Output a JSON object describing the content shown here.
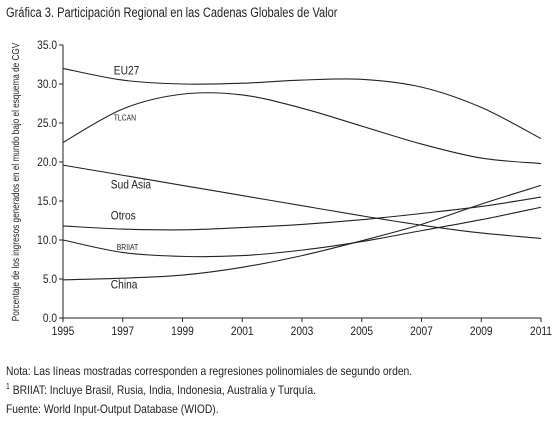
{
  "chart_data": {
    "type": "line",
    "title": "Gráfica 3. Participación Regional en las Cadenas Globales de Valor",
    "ylabel": "Porcentaje de los ingresos generados en el mundo bajo el esquema de CGV",
    "xlabel": "",
    "xlim": [
      1995,
      2011
    ],
    "ylim": [
      0,
      35
    ],
    "xticks": [
      "1995",
      "1997",
      "1999",
      "2001",
      "2003",
      "2005",
      "2007",
      "2009",
      "2011"
    ],
    "yticks": [
      "0.0",
      "5.0",
      "10.0",
      "15.0",
      "20.0",
      "25.0",
      "30.0",
      "35.0"
    ],
    "grid": false,
    "series": [
      {
        "name": "EU27",
        "x": [
          1995,
          1997,
          1999,
          2001,
          2003,
          2005,
          2007,
          2009,
          2011
        ],
        "values": [
          32.0,
          30.5,
          30.0,
          30.1,
          30.5,
          30.6,
          29.6,
          27.0,
          23.0
        ]
      },
      {
        "name": "TLCAN",
        "x": [
          1995,
          1997,
          1999,
          2001,
          2003,
          2005,
          2007,
          2009,
          2011
        ],
        "values": [
          22.5,
          26.8,
          28.7,
          28.6,
          26.9,
          24.6,
          22.3,
          20.5,
          19.8
        ]
      },
      {
        "name": "Sud Asia",
        "x": [
          1995,
          1997,
          1999,
          2001,
          2003,
          2005,
          2007,
          2009,
          2011
        ],
        "values": [
          19.6,
          18.3,
          17.0,
          15.7,
          14.4,
          13.1,
          11.9,
          10.9,
          10.2
        ]
      },
      {
        "name": "Otros",
        "x": [
          1995,
          1997,
          1999,
          2001,
          2003,
          2005,
          2007,
          2009,
          2011
        ],
        "values": [
          11.8,
          11.4,
          11.3,
          11.6,
          12.0,
          12.6,
          13.4,
          14.3,
          15.5
        ]
      },
      {
        "name": "BRIIAT",
        "x": [
          1995,
          1997,
          1999,
          2001,
          2003,
          2005,
          2007,
          2009,
          2011
        ],
        "values": [
          10.0,
          8.4,
          7.9,
          8.0,
          8.7,
          9.8,
          11.2,
          12.6,
          14.2
        ]
      },
      {
        "name": "China",
        "x": [
          1995,
          1997,
          1999,
          2001,
          2003,
          2005,
          2007,
          2009,
          2011
        ],
        "values": [
          4.9,
          5.1,
          5.5,
          6.5,
          8.0,
          9.9,
          12.0,
          14.6,
          17.0
        ]
      }
    ],
    "series_labels": [
      {
        "text": "EU27",
        "x": 1996.7,
        "y": 31.2
      },
      {
        "text": "TLCAN",
        "x": 1996.7,
        "y": 25.3
      },
      {
        "text": "Sud Asia",
        "x": 1996.6,
        "y": 16.6
      },
      {
        "text": "Otros",
        "x": 1996.6,
        "y": 12.6
      },
      {
        "text": "BRIIAT",
        "x": 1996.8,
        "y": 8.7
      },
      {
        "text": "China",
        "x": 1996.6,
        "y": 3.8
      }
    ]
  },
  "notes": {
    "line1": "Nota: Las líneas mostradas corresponden a regresiones polinomiales de segundo orden.",
    "line2_sup": "1",
    "line2": " BRIIAT:  Incluye Brasil, Rusia, India, Indonesia, Australia y Turquía.",
    "line3": "Fuente: World Input-Output Database (WIOD)."
  }
}
